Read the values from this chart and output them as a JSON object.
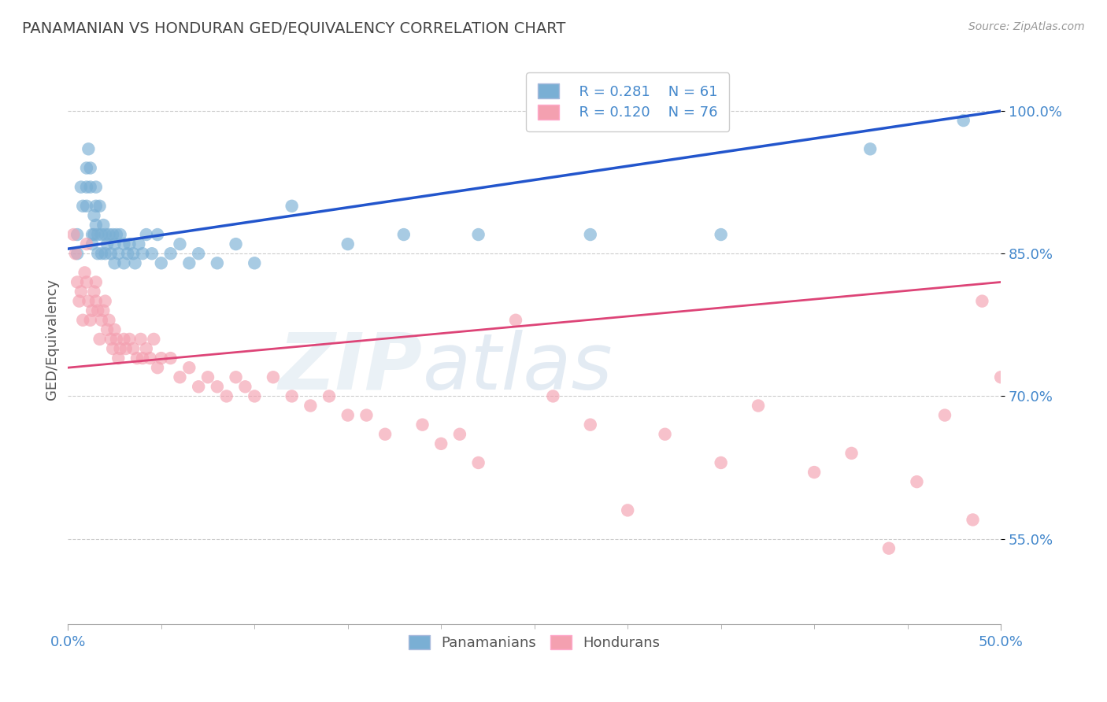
{
  "title": "PANAMANIAN VS HONDURAN GED/EQUIVALENCY CORRELATION CHART",
  "source": "Source: ZipAtlas.com",
  "ylabel": "GED/Equivalency",
  "x_min": 0.0,
  "x_max": 0.5,
  "y_min": 0.46,
  "y_max": 1.06,
  "yticks": [
    0.55,
    0.7,
    0.85,
    1.0
  ],
  "ytick_labels": [
    "55.0%",
    "70.0%",
    "85.0%",
    "100.0%"
  ],
  "xtick_positions": [
    0.0,
    0.5
  ],
  "xtick_labels": [
    "0.0%",
    "50.0%"
  ],
  "legend_labels": [
    "Panamanians",
    "Hondurans"
  ],
  "blue_color": "#7aafd4",
  "pink_color": "#f4a0b0",
  "blue_line_color": "#2255cc",
  "pink_line_color": "#dd4477",
  "R_blue": 0.281,
  "N_blue": 61,
  "R_pink": 0.12,
  "N_pink": 76,
  "title_color": "#444444",
  "axis_color": "#4488cc",
  "background_color": "#ffffff",
  "grid_color": "#cccccc",
  "blue_scatter_x": [
    0.005,
    0.005,
    0.007,
    0.008,
    0.01,
    0.01,
    0.01,
    0.011,
    0.012,
    0.012,
    0.013,
    0.013,
    0.014,
    0.014,
    0.015,
    0.015,
    0.015,
    0.016,
    0.016,
    0.017,
    0.018,
    0.018,
    0.019,
    0.02,
    0.02,
    0.021,
    0.022,
    0.023,
    0.024,
    0.025,
    0.025,
    0.026,
    0.027,
    0.028,
    0.03,
    0.03,
    0.032,
    0.033,
    0.035,
    0.036,
    0.038,
    0.04,
    0.042,
    0.045,
    0.048,
    0.05,
    0.055,
    0.06,
    0.065,
    0.07,
    0.08,
    0.09,
    0.1,
    0.12,
    0.15,
    0.18,
    0.22,
    0.28,
    0.35,
    0.43,
    0.48
  ],
  "blue_scatter_y": [
    0.87,
    0.85,
    0.92,
    0.9,
    0.94,
    0.92,
    0.9,
    0.96,
    0.94,
    0.92,
    0.87,
    0.86,
    0.89,
    0.87,
    0.92,
    0.9,
    0.88,
    0.87,
    0.85,
    0.9,
    0.87,
    0.85,
    0.88,
    0.87,
    0.85,
    0.86,
    0.87,
    0.85,
    0.87,
    0.86,
    0.84,
    0.87,
    0.85,
    0.87,
    0.86,
    0.84,
    0.85,
    0.86,
    0.85,
    0.84,
    0.86,
    0.85,
    0.87,
    0.85,
    0.87,
    0.84,
    0.85,
    0.86,
    0.84,
    0.85,
    0.84,
    0.86,
    0.84,
    0.9,
    0.86,
    0.87,
    0.87,
    0.87,
    0.87,
    0.96,
    0.99
  ],
  "pink_scatter_x": [
    0.003,
    0.004,
    0.005,
    0.006,
    0.007,
    0.008,
    0.009,
    0.01,
    0.01,
    0.011,
    0.012,
    0.013,
    0.014,
    0.015,
    0.015,
    0.016,
    0.017,
    0.018,
    0.019,
    0.02,
    0.021,
    0.022,
    0.023,
    0.024,
    0.025,
    0.026,
    0.027,
    0.028,
    0.03,
    0.031,
    0.033,
    0.035,
    0.037,
    0.039,
    0.04,
    0.042,
    0.044,
    0.046,
    0.048,
    0.05,
    0.055,
    0.06,
    0.065,
    0.07,
    0.075,
    0.08,
    0.085,
    0.09,
    0.095,
    0.1,
    0.11,
    0.12,
    0.13,
    0.14,
    0.15,
    0.16,
    0.17,
    0.19,
    0.2,
    0.21,
    0.22,
    0.24,
    0.26,
    0.28,
    0.3,
    0.32,
    0.35,
    0.37,
    0.4,
    0.42,
    0.44,
    0.455,
    0.47,
    0.485,
    0.49,
    0.5
  ],
  "pink_scatter_y": [
    0.87,
    0.85,
    0.82,
    0.8,
    0.81,
    0.78,
    0.83,
    0.86,
    0.82,
    0.8,
    0.78,
    0.79,
    0.81,
    0.82,
    0.8,
    0.79,
    0.76,
    0.78,
    0.79,
    0.8,
    0.77,
    0.78,
    0.76,
    0.75,
    0.77,
    0.76,
    0.74,
    0.75,
    0.76,
    0.75,
    0.76,
    0.75,
    0.74,
    0.76,
    0.74,
    0.75,
    0.74,
    0.76,
    0.73,
    0.74,
    0.74,
    0.72,
    0.73,
    0.71,
    0.72,
    0.71,
    0.7,
    0.72,
    0.71,
    0.7,
    0.72,
    0.7,
    0.69,
    0.7,
    0.68,
    0.68,
    0.66,
    0.67,
    0.65,
    0.66,
    0.63,
    0.78,
    0.7,
    0.67,
    0.58,
    0.66,
    0.63,
    0.69,
    0.62,
    0.64,
    0.54,
    0.61,
    0.68,
    0.57,
    0.8,
    0.72
  ],
  "blue_trend_y0": 0.855,
  "blue_trend_y1": 1.0,
  "pink_trend_y0": 0.73,
  "pink_trend_y1": 0.82
}
